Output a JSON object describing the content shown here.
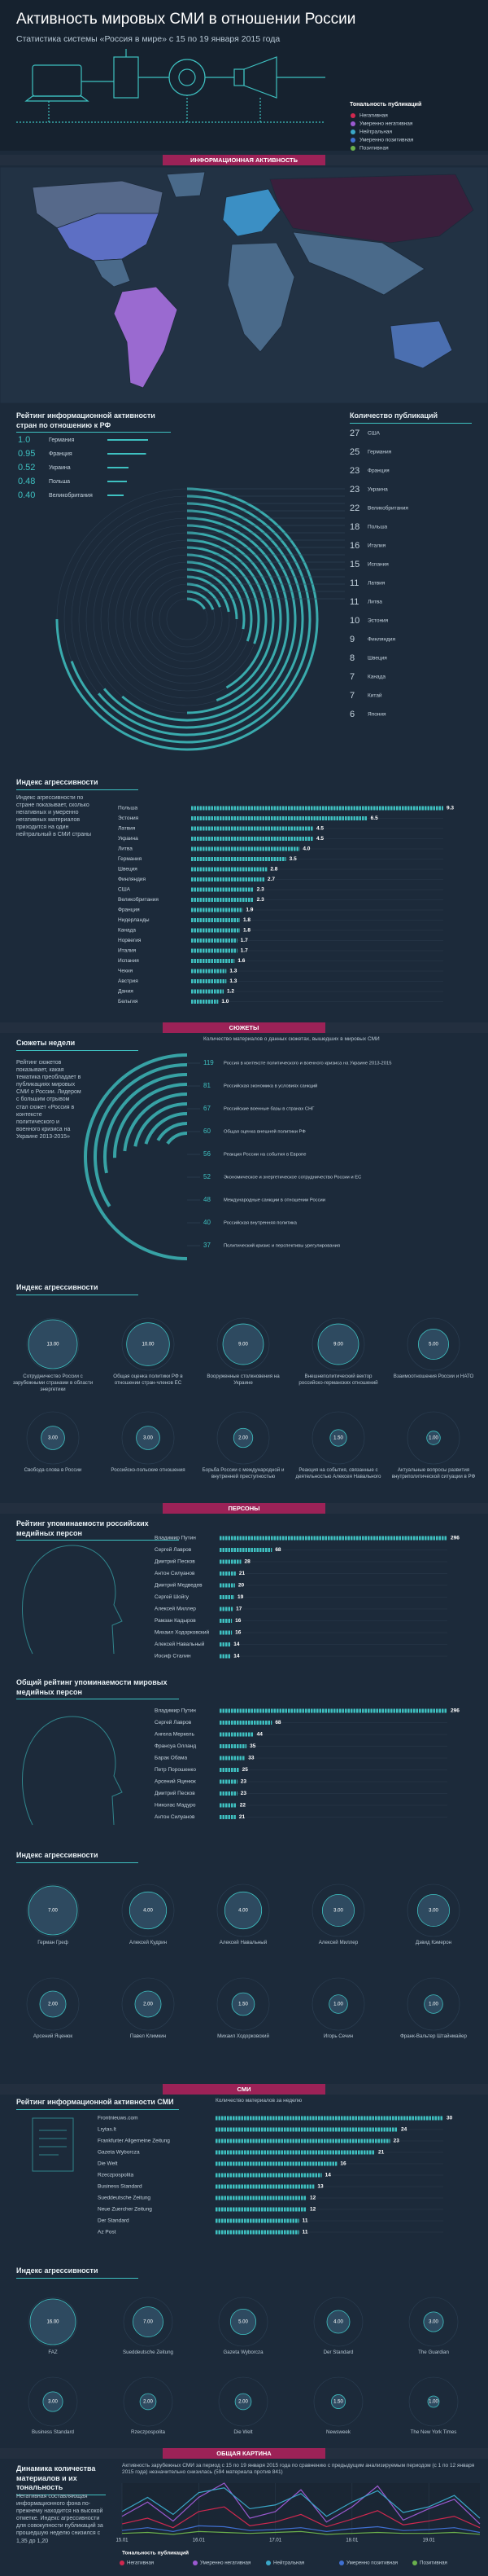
{
  "header": {
    "title": "Активность мировых СМИ в отношении России",
    "subtitle": "Статистика системы «Россия в мире» с 15 по 19 января 2015 года",
    "legend_title": "Тональность публикаций"
  },
  "sections": [
    "ИНФОРМАЦИОННАЯ АКТИВНОСТЬ",
    "СЮЖЕТЫ",
    "ПЕРСОНЫ",
    "СМИ",
    "ОБЩАЯ КАРТИНА"
  ],
  "chart_data": [
    {
      "type": "rating",
      "title": "Рейтинг информационной активности стран по отношению к РФ",
      "categories": [
        "Германия",
        "Франция",
        "Украина",
        "Польша",
        "Великобритания"
      ],
      "values": [
        1,
        0.95,
        0.52,
        0.48,
        0.4
      ],
      "value_labels": [
        "1.0",
        "0.95",
        "0.52",
        "0.48",
        "0.40"
      ],
      "color": "#3ec1c1"
    },
    {
      "type": "radial",
      "title": "Количество публикаций",
      "categories": [
        "США",
        "Германия",
        "Франция",
        "Украина",
        "Великобритания",
        "Польша",
        "Италия",
        "Испания",
        "Латвия",
        "Литва",
        "Эстония",
        "Финляндия",
        "Швеция",
        "Канада",
        "Китай",
        "Япония"
      ],
      "values": [
        27,
        25,
        23,
        23,
        22,
        18,
        16,
        15,
        11,
        11,
        10,
        9,
        8,
        7,
        7,
        6
      ],
      "color": "#3ec1c1"
    },
    {
      "type": "bar",
      "title": "Индекс агрессивности",
      "note": "Индекс агрессивности по стране показывает, сколько негативных и умеренно негативных материалов приходится на один нейтральный в СМИ страны",
      "categories": [
        "Польша",
        "Эстония",
        "Латвия",
        "Украина",
        "Литва",
        "Германия",
        "Швеция",
        "Финляндия",
        "США",
        "Великобритания",
        "Франция",
        "Нидерланды",
        "Канада",
        "Норвегия",
        "Италия",
        "Испания",
        "Чехия",
        "Австрия",
        "Дания",
        "Бельгия"
      ],
      "values": [
        9.3,
        6.5,
        4.5,
        4.5,
        4,
        3.5,
        2.8,
        2.7,
        2.3,
        2.3,
        1.9,
        1.8,
        1.8,
        1.7,
        1.7,
        1.6,
        1.3,
        1.3,
        1.2,
        1
      ],
      "value_labels": [
        "9.3",
        "6.5",
        "4.5",
        "4.5",
        "4.0",
        "3.5",
        "2.8",
        "2.7",
        "2.3",
        "2.3",
        "1.9",
        "1.8",
        "1.8",
        "1.7",
        "1.7",
        "1.6",
        "1.3",
        "1.3",
        "1.2",
        "1.0"
      ],
      "color": "#3ec1c1"
    },
    {
      "type": "arc",
      "title": "Сюжеты недели",
      "subtitle": "Количество материалов о данных сюжетах, вышедших в мировых СМИ",
      "note": "Рейтинг сюжетов показывает, какая тематика преобладает в публикациях мировых СМИ о России. Лидером с большим отрывом стал сюжет «Россия в контексте политического и военного кризиса на Украине 2013-2015»",
      "categories": [
        "Россия в контексте политического и военного кризиса на Украине 2013-2015",
        "Российская экономика в условиях санкций",
        "Российские военные базы в странах СНГ",
        "Общая оценка внешней политики РФ",
        "Реакция России на события в Европе",
        "Экономическое и энергетическое сотрудничество России и ЕС",
        "Международные санкции в отношении России",
        "Российская внутренняя политика",
        "Политический кризис и перспективы урегулирования"
      ],
      "values": [
        119,
        81,
        67,
        60,
        56,
        52,
        48,
        40,
        37
      ],
      "color": "#3ec1c1"
    },
    {
      "type": "bubble",
      "title": "Индекс агрессивности",
      "categories": [
        "Сотрудничество России с зарубежными странами в области энергетики",
        "Общая оценка политики РФ в отношении стран-членов ЕС",
        "Вооруженные столкновения на Украине",
        "Внешнеполитический вектор российско-германских отношений",
        "Взаимоотношения России и НАТО",
        "Свобода слова в России",
        "Российско-польские отношения",
        "Борьба России с международной и внутренней преступностью",
        "Реакция на события, связанные с деятельностью Алексея Навального",
        "Актуальные вопросы развития внутриполитической ситуации в РФ"
      ],
      "values": [
        13,
        10,
        9,
        9,
        5,
        3,
        3,
        2,
        1.5,
        1
      ],
      "value_labels": [
        "13.00",
        "10.00",
        "9.00",
        "9.00",
        "5.00",
        "3.00",
        "3.00",
        "2.00",
        "1.50",
        "1.00"
      ],
      "color": "#2e4a60"
    },
    {
      "type": "bar",
      "title": "Рейтинг упоминаемости российских медийных персон",
      "categories": [
        "Владимир Путин",
        "Сергей Лавров",
        "Дмитрий Песков",
        "Антон Силуанов",
        "Дмитрий Медведев",
        "Сергей Шойгу",
        "Алексей Миллер",
        "Рамзан Кадыров",
        "Михаил Ходорковский",
        "Алексей Навальный",
        "Иосиф Сталин"
      ],
      "values": [
        296,
        68,
        28,
        21,
        20,
        19,
        17,
        16,
        16,
        14,
        14
      ],
      "color": "#3ec1c1"
    },
    {
      "type": "bar",
      "title": "Общий рейтинг упоминаемости мировых медийных персон",
      "categories": [
        "Владимир Путин",
        "Сергей Лавров",
        "Ангела Меркель",
        "Франсуа Олланд",
        "Барак Обама",
        "Петр Порошенко",
        "Арсений Яценюк",
        "Дмитрий Песков",
        "Николас Мадуро",
        "Антон Силуанов"
      ],
      "values": [
        296,
        68,
        44,
        35,
        33,
        25,
        23,
        23,
        22,
        21
      ],
      "color": "#3ec1c1"
    },
    {
      "type": "bubble",
      "title": "Индекс агрессивности",
      "categories": [
        "Герман Греф",
        "Алексей Кудрин",
        "Алексей Навальный",
        "Алексей Миллер",
        "Дэвид Кэмерон",
        "Арсений Яценюк",
        "Павел Климкин",
        "Михаил Ходорковский",
        "Игорь Сечин",
        "Франк-Вальтер Штайнмайер"
      ],
      "values": [
        7,
        4,
        4,
        3,
        3,
        2,
        2,
        1.5,
        1,
        1
      ],
      "value_labels": [
        "7.00",
        "4.00",
        "4.00",
        "3.00",
        "3.00",
        "2.00",
        "2.00",
        "1.50",
        "1.00",
        "1.00"
      ],
      "color": "#2e4a60"
    },
    {
      "type": "bar",
      "title": "Рейтинг информационной активности СМИ",
      "subtitle": "Количество материалов за неделю",
      "categories": [
        "Frontnieuws.com",
        "Lrytas.lt",
        "Frankfurter Allgemeine Zeitung",
        "Gazeta Wyborcza",
        "Die Welt",
        "Rzeczpospolita",
        "Business Standard",
        "Sueddeutsche Zeitung",
        "Neue Zuercher Zeitung",
        "Der Standard",
        "Az Post"
      ],
      "values": [
        30,
        24,
        23,
        21,
        16,
        14,
        13,
        12,
        12,
        11,
        11
      ],
      "color": "#3ec1c1"
    },
    {
      "type": "bubble",
      "title": "Индекс агрессивности",
      "categories": [
        "FAZ",
        "Sueddeutsche Zeitung",
        "Gazeta Wyborcza",
        "Der Standard",
        "The Guardian",
        "Business Standard",
        "Rzeczpospolita",
        "Die Welt",
        "Newsweek",
        "The New York Times"
      ],
      "values": [
        16,
        7,
        5,
        4,
        3,
        3,
        2,
        2,
        1.5,
        1
      ],
      "value_labels": [
        "16.00",
        "7.00",
        "5.00",
        "4.00",
        "3.00",
        "3.00",
        "2.00",
        "2.00",
        "1.50",
        "1.00"
      ],
      "color": "#2e4a60"
    },
    {
      "type": "line",
      "title": "Динамика количества материалов и их тональность",
      "subtitle": "Активность зарубежных СМИ за период с 15 по 19 января 2015 года по сравнению с предыдущим анализируемым периодом (с 1 по 12 января 2015 года) незначительно снизилась (594 материала против 841)",
      "note": "Негативная составляющая информационного фона по-прежнему находится на высокой отметке. Индекс агрессивности для совокупности публикаций за прошедшую неделю снизился с 1,35 до 1,20",
      "categories": [
        "15.01",
        null,
        null,
        "16.01",
        null,
        null,
        "17.01",
        null,
        null,
        "18.01",
        null,
        null,
        "19.01",
        null,
        null
      ],
      "series": [
        {
          "name": "Негативная",
          "color": "#d0284f",
          "values": [
            12,
            18,
            8,
            25,
            30,
            10,
            14,
            22,
            9,
            17,
            26,
            11,
            15,
            20,
            8
          ]
        },
        {
          "name": "Умеренно негативная",
          "color": "#9b59d0",
          "values": [
            20,
            35,
            15,
            40,
            55,
            18,
            25,
            48,
            14,
            30,
            52,
            16,
            28,
            38,
            12
          ]
        },
        {
          "name": "Нейтральная",
          "color": "#3aa7c8",
          "values": [
            25,
            40,
            22,
            45,
            50,
            28,
            32,
            44,
            20,
            35,
            47,
            24,
            30,
            42,
            18
          ]
        },
        {
          "name": "Умеренно позитивная",
          "color": "#3f6fd0",
          "values": [
            5,
            8,
            4,
            10,
            9,
            5,
            6,
            8,
            4,
            7,
            9,
            5,
            6,
            8,
            3
          ]
        },
        {
          "name": "Позитивная",
          "color": "#6ab04c",
          "values": [
            2,
            3,
            1,
            4,
            3,
            2,
            3,
            4,
            1,
            2,
            3,
            2,
            2,
            3,
            1
          ]
        }
      ]
    }
  ]
}
